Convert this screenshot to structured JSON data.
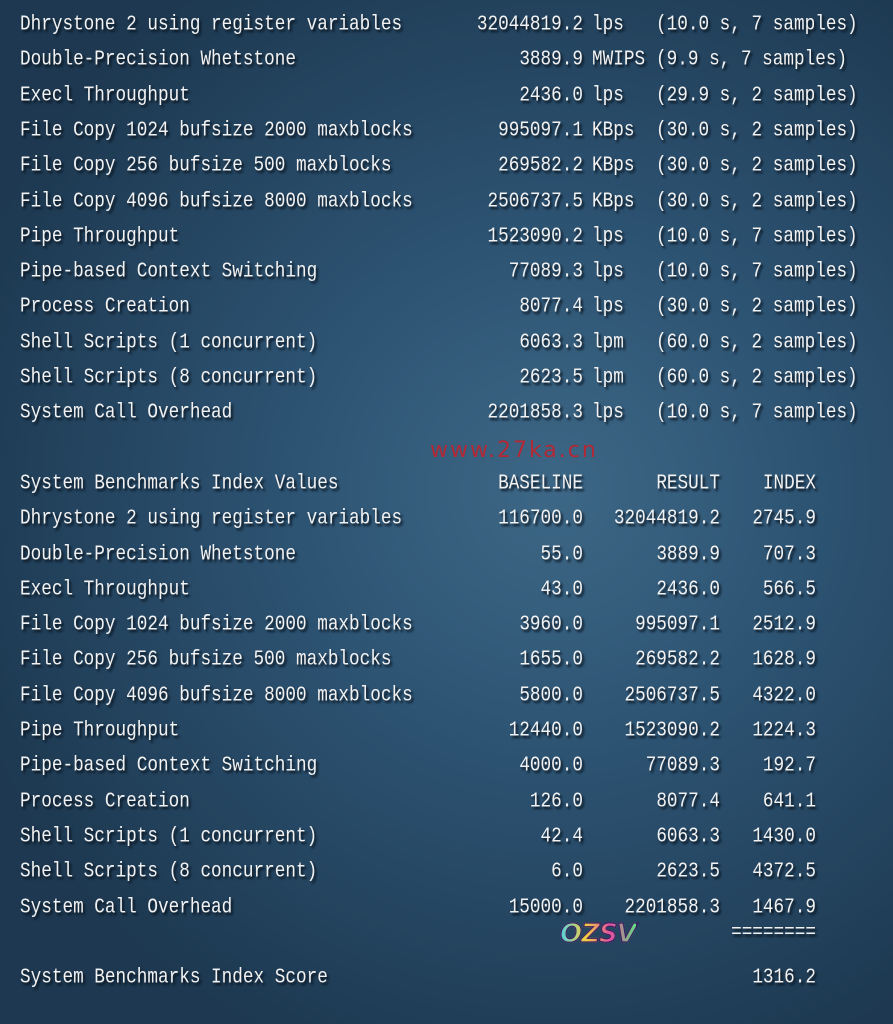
{
  "results": [
    {
      "name": "Dhrystone 2 using register variables",
      "value": "32044819.2",
      "unit": "lps",
      "detail": "(10.0 s, 7 samples)"
    },
    {
      "name": "Double-Precision Whetstone",
      "value": "3889.9",
      "unit": "MWIPS",
      "detail": "(9.9 s, 7 samples)"
    },
    {
      "name": "Execl Throughput",
      "value": "2436.0",
      "unit": "lps",
      "detail": "(29.9 s, 2 samples)"
    },
    {
      "name": "File Copy 1024 bufsize 2000 maxblocks",
      "value": "995097.1",
      "unit": "KBps",
      "detail": "(30.0 s, 2 samples)"
    },
    {
      "name": "File Copy 256 bufsize 500 maxblocks",
      "value": "269582.2",
      "unit": "KBps",
      "detail": "(30.0 s, 2 samples)"
    },
    {
      "name": "File Copy 4096 bufsize 8000 maxblocks",
      "value": "2506737.5",
      "unit": "KBps",
      "detail": "(30.0 s, 2 samples)"
    },
    {
      "name": "Pipe Throughput",
      "value": "1523090.2",
      "unit": "lps",
      "detail": "(10.0 s, 7 samples)"
    },
    {
      "name": "Pipe-based Context Switching",
      "value": "77089.3",
      "unit": "lps",
      "detail": "(10.0 s, 7 samples)"
    },
    {
      "name": "Process Creation",
      "value": "8077.4",
      "unit": "lps",
      "detail": "(30.0 s, 2 samples)"
    },
    {
      "name": "Shell Scripts (1 concurrent)",
      "value": "6063.3",
      "unit": "lpm",
      "detail": "(60.0 s, 2 samples)"
    },
    {
      "name": "Shell Scripts (8 concurrent)",
      "value": "2623.5",
      "unit": "lpm",
      "detail": "(60.0 s, 2 samples)"
    },
    {
      "name": "System Call Overhead",
      "value": "2201858.3",
      "unit": "lps",
      "detail": "(10.0 s, 7 samples)"
    }
  ],
  "index": {
    "header": {
      "name": "System Benchmarks Index Values",
      "baseline": "BASELINE",
      "result": "RESULT",
      "index": "INDEX"
    },
    "rows": [
      {
        "name": "Dhrystone 2 using register variables",
        "baseline": "116700.0",
        "result": "32044819.2",
        "index": "2745.9"
      },
      {
        "name": "Double-Precision Whetstone",
        "baseline": "55.0",
        "result": "3889.9",
        "index": "707.3"
      },
      {
        "name": "Execl Throughput",
        "baseline": "43.0",
        "result": "2436.0",
        "index": "566.5"
      },
      {
        "name": "File Copy 1024 bufsize 2000 maxblocks",
        "baseline": "3960.0",
        "result": "995097.1",
        "index": "2512.9"
      },
      {
        "name": "File Copy 256 bufsize 500 maxblocks",
        "baseline": "1655.0",
        "result": "269582.2",
        "index": "1628.9"
      },
      {
        "name": "File Copy 4096 bufsize 8000 maxblocks",
        "baseline": "5800.0",
        "result": "2506737.5",
        "index": "4322.0"
      },
      {
        "name": "Pipe Throughput",
        "baseline": "12440.0",
        "result": "1523090.2",
        "index": "1224.3"
      },
      {
        "name": "Pipe-based Context Switching",
        "baseline": "4000.0",
        "result": "77089.3",
        "index": "192.7"
      },
      {
        "name": "Process Creation",
        "baseline": "126.0",
        "result": "8077.4",
        "index": "641.1"
      },
      {
        "name": "Shell Scripts (1 concurrent)",
        "baseline": "42.4",
        "result": "6063.3",
        "index": "1430.0"
      },
      {
        "name": "Shell Scripts (8 concurrent)",
        "baseline": "6.0",
        "result": "2623.5",
        "index": "4372.5"
      },
      {
        "name": "System Call Overhead",
        "baseline": "15000.0",
        "result": "2201858.3",
        "index": "1467.9"
      }
    ],
    "separator": "========",
    "score_label": "System Benchmarks Index Score",
    "score": "1316.2"
  },
  "watermark": "www.27ka.cn",
  "logo": "OZSV",
  "colors": {
    "background": "#2c5271",
    "text": "#f2f2f2",
    "watermark": "#c81e28"
  }
}
